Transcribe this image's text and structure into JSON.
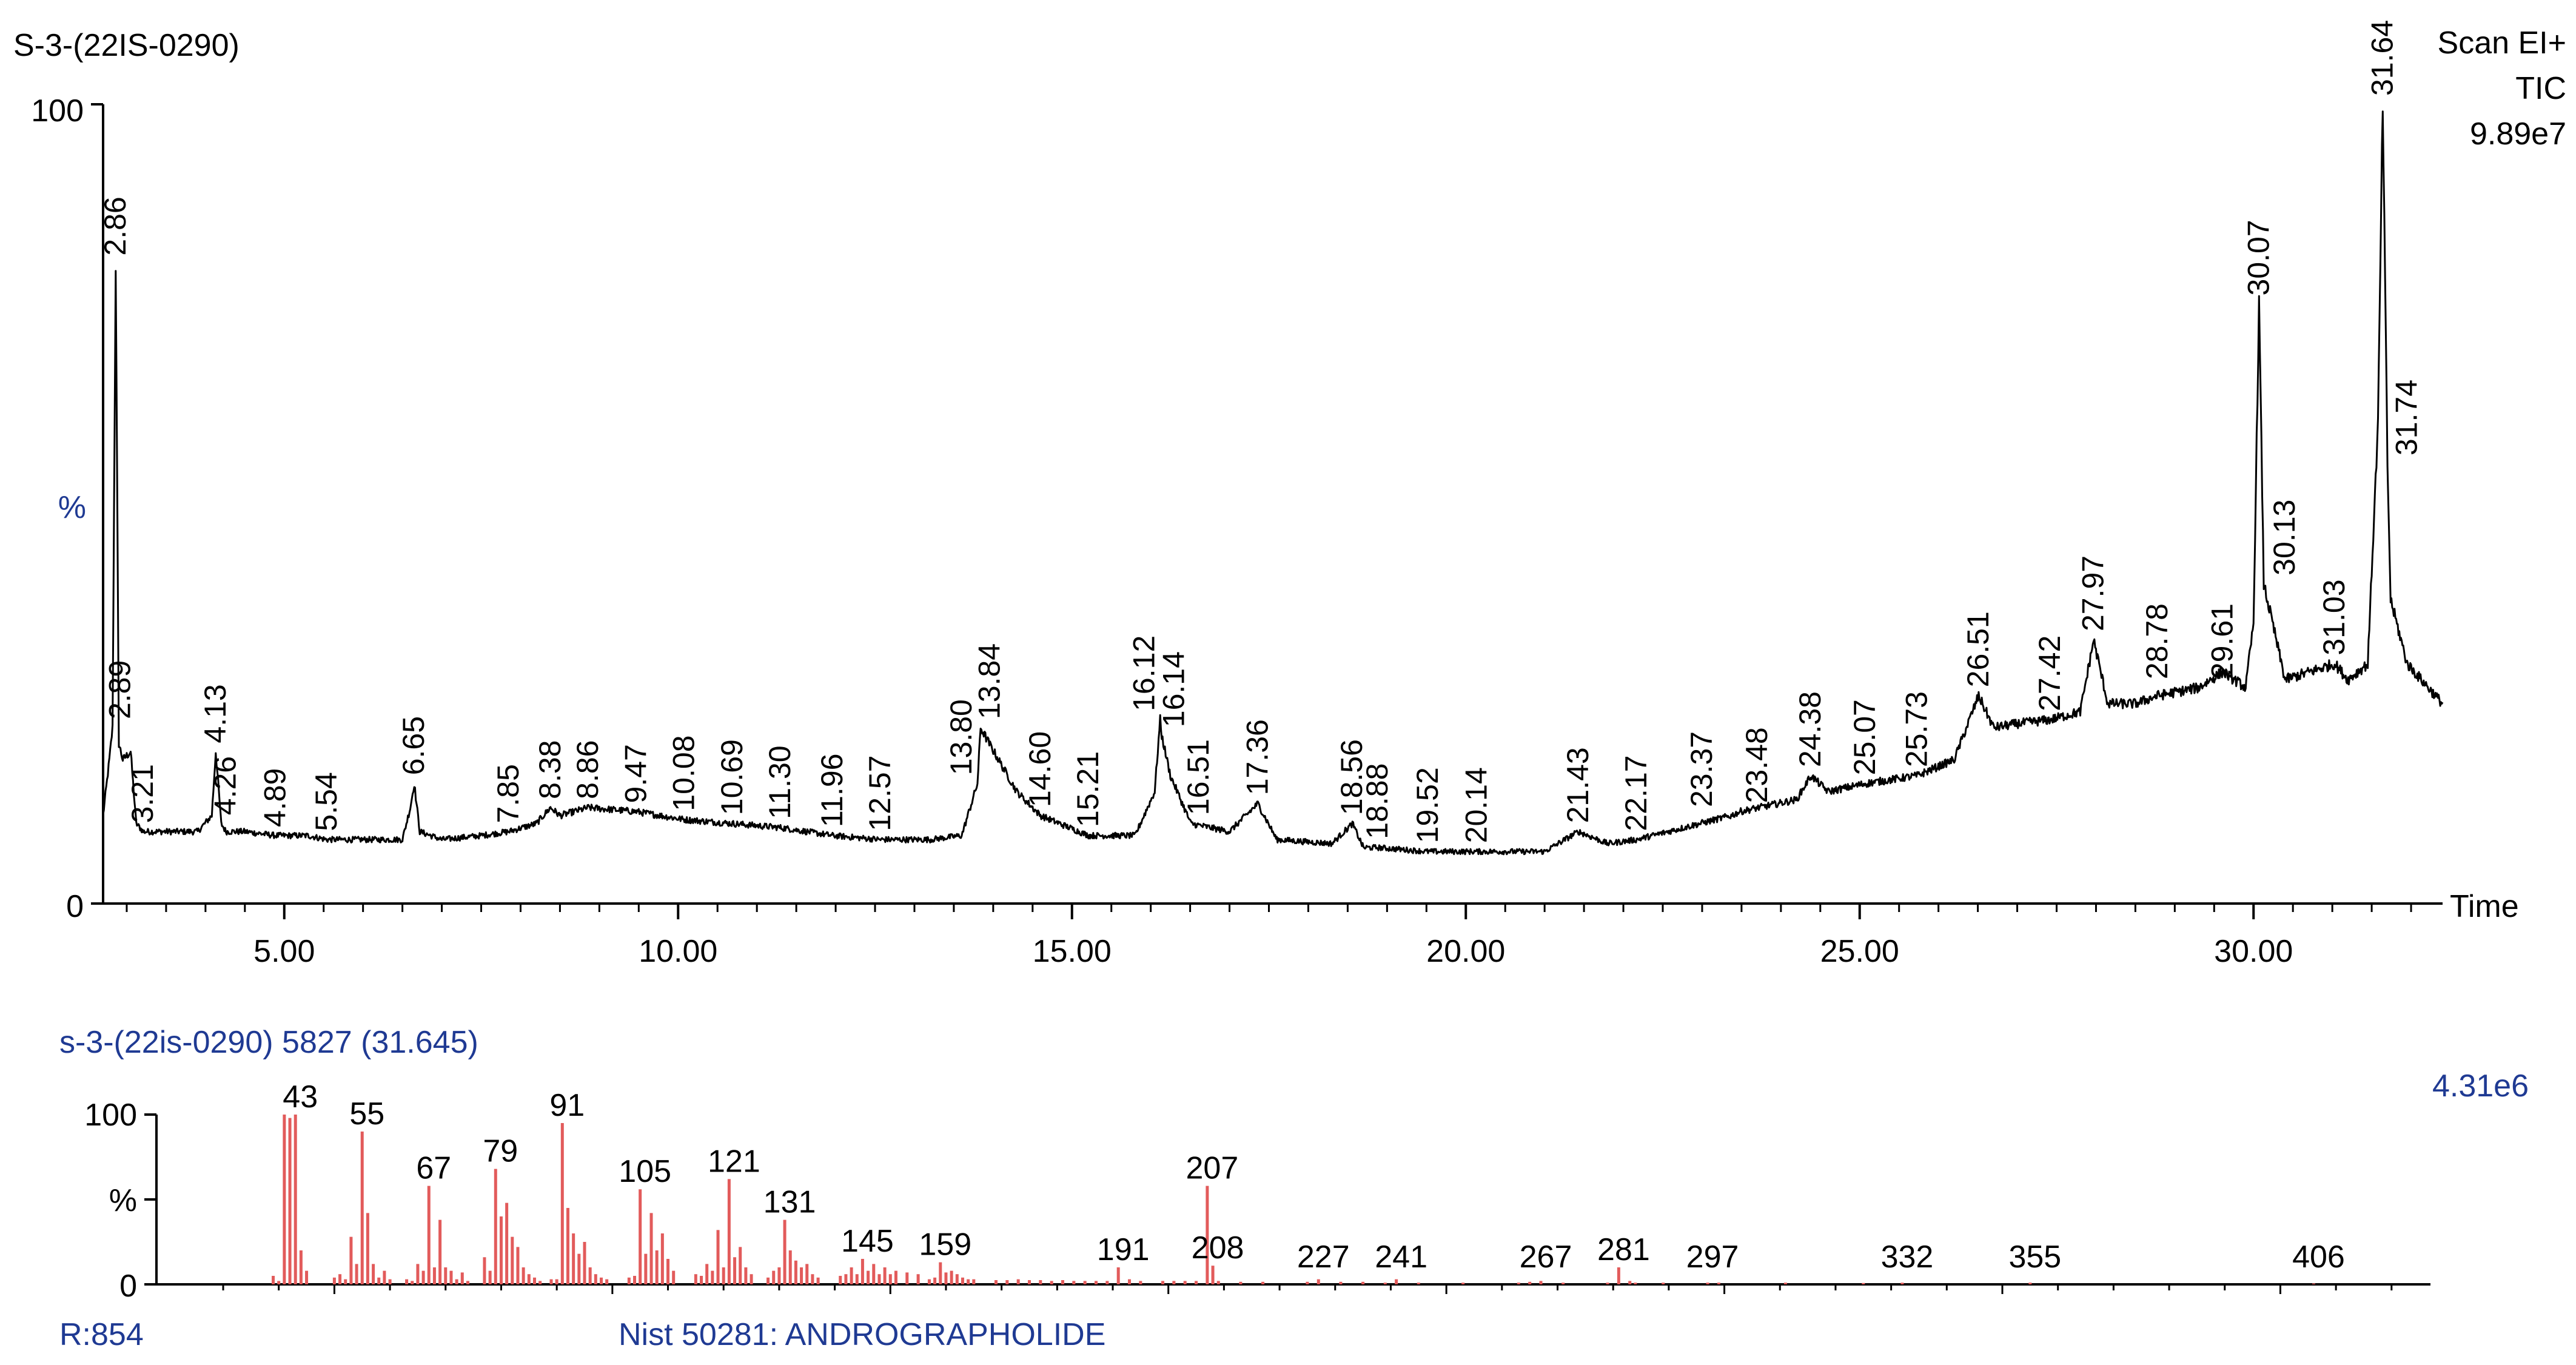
{
  "chart_data": [
    {
      "type": "line",
      "sample_label": "S-3-(22IS-0290)",
      "scan_mode": "Scan  EI+",
      "trace": "TIC",
      "max_intensity": "9.89e7",
      "xlabel": "Time",
      "ylabel": "%",
      "xlim": [
        2.7,
        32.4
      ],
      "ylim": [
        0,
        100
      ],
      "x_ticks": [
        5.0,
        10.0,
        15.0,
        20.0,
        25.0,
        30.0
      ],
      "x_tick_labels": [
        "5.00",
        "10.00",
        "15.00",
        "20.00",
        "25.00",
        "30.00"
      ],
      "y_ticks": [
        0,
        100
      ],
      "y_tick_labels": [
        "0",
        "100"
      ],
      "profile": {
        "x": [
          2.7,
          2.78,
          2.82,
          2.86,
          2.9,
          2.95,
          3.05,
          3.12,
          3.21,
          3.5,
          3.9,
          4.08,
          4.13,
          4.2,
          4.26,
          4.5,
          4.89,
          5.3,
          5.54,
          6.0,
          6.5,
          6.6,
          6.65,
          6.72,
          7.0,
          7.5,
          7.85,
          8.2,
          8.38,
          8.5,
          8.86,
          9.47,
          10.08,
          10.69,
          11.3,
          11.96,
          12.57,
          13.2,
          13.6,
          13.8,
          13.84,
          13.95,
          14.3,
          14.6,
          15.21,
          15.8,
          16.05,
          16.12,
          16.14,
          16.25,
          16.51,
          17.0,
          17.36,
          17.6,
          18.3,
          18.56,
          18.7,
          18.88,
          19.52,
          20.14,
          21.0,
          21.43,
          21.8,
          22.17,
          23.37,
          23.48,
          24.2,
          24.38,
          24.6,
          25.07,
          25.73,
          26.2,
          26.51,
          26.7,
          27.0,
          27.42,
          27.8,
          27.97,
          28.15,
          28.5,
          28.78,
          29.3,
          29.61,
          29.9,
          30.0,
          30.07,
          30.13,
          30.4,
          31.03,
          31.2,
          31.45,
          31.58,
          31.64,
          31.7,
          31.74,
          31.95,
          32.4
        ],
        "y": [
          11,
          18,
          22,
          80,
          20,
          18,
          19,
          10,
          9,
          9,
          9,
          11,
          19,
          10,
          9,
          9,
          8.5,
          8.5,
          8,
          8,
          8,
          12,
          15,
          9,
          8,
          8.5,
          9,
          10,
          12,
          11,
          12,
          11.5,
          10.5,
          10,
          9.5,
          8.5,
          8,
          8,
          8.5,
          15,
          22,
          20,
          14,
          11,
          8.5,
          8.5,
          14,
          23,
          21,
          16,
          10,
          9,
          12.5,
          8,
          7.5,
          10,
          7,
          7,
          6.5,
          6.5,
          6.5,
          9,
          7.5,
          8,
          11,
          11.5,
          13,
          16,
          14,
          15,
          16,
          18,
          26,
          22,
          22.5,
          23,
          24,
          33,
          25,
          25,
          26,
          27,
          29,
          27,
          35,
          75,
          40,
          28,
          30,
          28,
          30,
          60,
          100,
          55,
          38,
          30,
          25
        ]
      },
      "peak_labels": [
        {
          "rt": "2.86",
          "x": 2.86,
          "y": 80
        },
        {
          "rt": "2.89",
          "x": 2.92,
          "y": 22
        },
        {
          "rt": "3.21",
          "x": 3.21,
          "y": 9
        },
        {
          "rt": "4.13",
          "x": 4.13,
          "y": 19
        },
        {
          "rt": "4.26",
          "x": 4.26,
          "y": 10
        },
        {
          "rt": "4.89",
          "x": 4.89,
          "y": 8.5
        },
        {
          "rt": "5.54",
          "x": 5.54,
          "y": 8
        },
        {
          "rt": "6.65",
          "x": 6.65,
          "y": 15
        },
        {
          "rt": "7.85",
          "x": 7.85,
          "y": 9
        },
        {
          "rt": "8.38",
          "x": 8.38,
          "y": 12
        },
        {
          "rt": "8.86",
          "x": 8.86,
          "y": 12
        },
        {
          "rt": "9.47",
          "x": 9.47,
          "y": 11.5
        },
        {
          "rt": "10.08",
          "x": 10.08,
          "y": 10.5
        },
        {
          "rt": "10.69",
          "x": 10.69,
          "y": 10
        },
        {
          "rt": "11.30",
          "x": 11.3,
          "y": 9.5
        },
        {
          "rt": "11.96",
          "x": 11.96,
          "y": 8.5
        },
        {
          "rt": "12.57",
          "x": 12.57,
          "y": 8
        },
        {
          "rt": "13.80",
          "x": 13.6,
          "y": 15
        },
        {
          "rt": "13.84",
          "x": 13.96,
          "y": 22
        },
        {
          "rt": "14.60",
          "x": 14.6,
          "y": 11
        },
        {
          "rt": "15.21",
          "x": 15.21,
          "y": 8.5
        },
        {
          "rt": "16.12",
          "x": 15.92,
          "y": 23
        },
        {
          "rt": "16.14",
          "x": 16.3,
          "y": 21
        },
        {
          "rt": "16.51",
          "x": 16.61,
          "y": 10
        },
        {
          "rt": "17.36",
          "x": 17.36,
          "y": 12.5
        },
        {
          "rt": "18.56",
          "x": 18.56,
          "y": 10
        },
        {
          "rt": "18.88",
          "x": 18.88,
          "y": 7
        },
        {
          "rt": "19.52",
          "x": 19.52,
          "y": 6.5
        },
        {
          "rt": "20.14",
          "x": 20.14,
          "y": 6.5
        },
        {
          "rt": "21.43",
          "x": 21.43,
          "y": 9
        },
        {
          "rt": "22.17",
          "x": 22.17,
          "y": 8
        },
        {
          "rt": "23.37",
          "x": 23.0,
          "y": 11
        },
        {
          "rt": "23.48",
          "x": 23.7,
          "y": 11.5
        },
        {
          "rt": "24.38",
          "x": 24.38,
          "y": 16
        },
        {
          "rt": "25.07",
          "x": 25.07,
          "y": 15
        },
        {
          "rt": "25.73",
          "x": 25.73,
          "y": 16
        },
        {
          "rt": "26.51",
          "x": 26.51,
          "y": 26
        },
        {
          "rt": "27.42",
          "x": 27.42,
          "y": 23
        },
        {
          "rt": "27.97",
          "x": 27.97,
          "y": 33
        },
        {
          "rt": "28.78",
          "x": 28.78,
          "y": 27
        },
        {
          "rt": "29.61",
          "x": 29.61,
          "y": 27
        },
        {
          "rt": "30.07",
          "x": 30.07,
          "y": 75
        },
        {
          "rt": "30.13",
          "x": 30.4,
          "y": 40
        },
        {
          "rt": "31.03",
          "x": 31.03,
          "y": 30
        },
        {
          "rt": "31.64",
          "x": 31.64,
          "y": 100
        },
        {
          "rt": "31.74",
          "x": 31.95,
          "y": 55
        }
      ]
    },
    {
      "type": "bar",
      "spectrum_title": "s-3-(22is-0290) 5827 (31.645)",
      "max_intensity": "4.31e6",
      "ylabel": "%",
      "xlim": [
        18,
        427
      ],
      "ylim": [
        0,
        100
      ],
      "y_tick_labels": [
        "100",
        "0"
      ],
      "labeled_peaks": {
        "mz": [
          43,
          55,
          67,
          79,
          91,
          105,
          121,
          131,
          145,
          159,
          191,
          207,
          208,
          227,
          241,
          267,
          281,
          297,
          332,
          355,
          406
        ],
        "labels": [
          "43",
          "55",
          "67",
          "79",
          "91",
          "105",
          "121",
          "131",
          "145",
          "159",
          "191",
          "207",
          "208",
          "227",
          "241",
          "267",
          "281",
          "297",
          "332",
          "355",
          "406"
        ],
        "intensity": [
          100,
          90,
          58,
          68,
          95,
          56,
          62,
          38,
          15,
          13,
          10,
          58,
          11,
          3,
          3,
          2,
          10,
          1,
          1,
          1,
          0.5
        ]
      },
      "other_peaks": {
        "mz": [
          39,
          40,
          41,
          42,
          44,
          45,
          50,
          51,
          52,
          53,
          54,
          56,
          57,
          58,
          59,
          60,
          63,
          64,
          65,
          66,
          68,
          69,
          70,
          71,
          72,
          73,
          74,
          77,
          78,
          80,
          81,
          82,
          83,
          84,
          85,
          86,
          87,
          89,
          90,
          92,
          93,
          94,
          95,
          96,
          97,
          98,
          99,
          103,
          104,
          106,
          107,
          108,
          109,
          110,
          111,
          115,
          116,
          117,
          118,
          119,
          120,
          122,
          123,
          124,
          125,
          128,
          129,
          130,
          132,
          133,
          134,
          135,
          136,
          137,
          141,
          142,
          143,
          144,
          146,
          147,
          148,
          149,
          150,
          151,
          153,
          155,
          157,
          158,
          160,
          161,
          162,
          163,
          164,
          165,
          169,
          171,
          173,
          175,
          177,
          179,
          181,
          183,
          185,
          187,
          189,
          193,
          195,
          199,
          201,
          203,
          205,
          209,
          213,
          217,
          225,
          231,
          235,
          239,
          245,
          253,
          263,
          265,
          271,
          279,
          283,
          284,
          289,
          299,
          311,
          325
        ],
        "intensity": [
          5,
          2,
          100,
          98,
          20,
          8,
          4,
          6,
          3,
          28,
          12,
          42,
          12,
          4,
          8,
          3,
          3,
          2,
          12,
          8,
          10,
          38,
          10,
          8,
          3,
          7,
          2,
          16,
          8,
          40,
          48,
          28,
          22,
          10,
          6,
          4,
          2,
          3,
          3,
          45,
          30,
          18,
          25,
          10,
          6,
          4,
          3,
          4,
          5,
          18,
          42,
          20,
          30,
          15,
          8,
          6,
          5,
          12,
          8,
          32,
          10,
          16,
          22,
          10,
          6,
          4,
          8,
          10,
          20,
          14,
          10,
          12,
          6,
          4,
          5,
          6,
          10,
          6,
          8,
          12,
          6,
          10,
          6,
          8,
          7,
          6,
          3,
          4,
          7,
          8,
          6,
          4,
          3,
          3,
          2.5,
          2.5,
          3,
          2.5,
          2.5,
          2,
          2.5,
          2,
          2,
          2,
          2,
          3,
          2,
          2,
          2,
          2,
          2,
          2,
          1.5,
          1.5,
          1.5,
          1.5,
          1.5,
          1,
          1,
          1,
          1,
          1.5,
          1,
          1,
          2,
          1,
          1,
          1,
          1,
          0.8
        ]
      }
    }
  ],
  "footer": {
    "match_score": "R:854",
    "library_hit": "Nist  50281: ANDROGRAPHOLIDE"
  },
  "colors": {
    "axis": "#000000",
    "trace": "#000000",
    "spectrum_bar": "#e25b5b",
    "blue_text": "#1f3a93"
  }
}
